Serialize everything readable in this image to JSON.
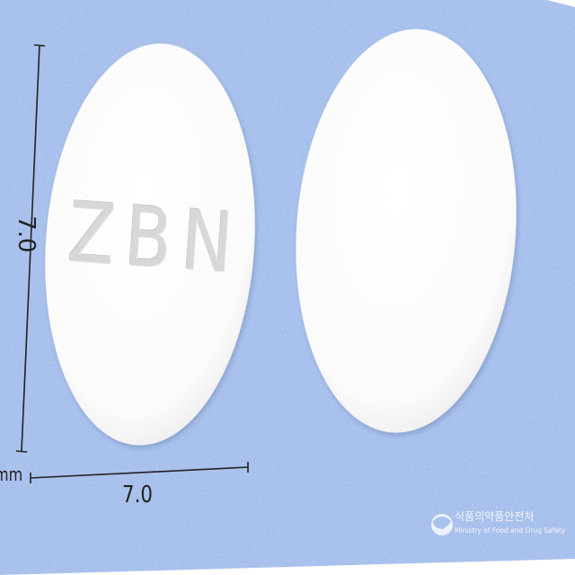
{
  "pill": {
    "front_imprint": "ZBN",
    "color": "#ffffff",
    "shape": "oval"
  },
  "dimensions": {
    "width": "7.0",
    "height": "7.0",
    "unit": "mm"
  },
  "watermark": {
    "korean": "식품의약품안전처",
    "english": "Ministry of Food and Drug Safety"
  },
  "colors": {
    "background": "#a8c0ec",
    "pill": "#ffffff",
    "imprint": "#d6d6d6"
  }
}
